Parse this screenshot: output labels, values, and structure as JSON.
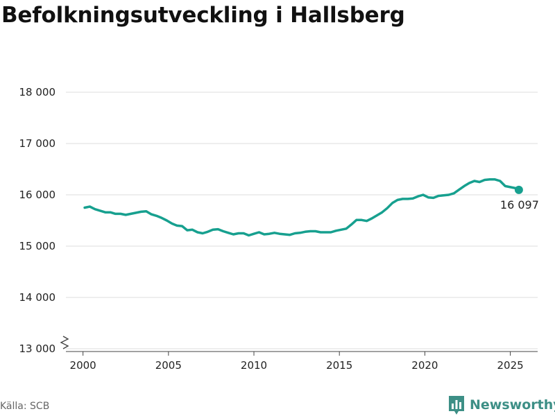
{
  "header": {
    "title": "Befolkningsutveckling i Hallsberg"
  },
  "footer": {
    "source": "Källa: SCB",
    "brand": "Newsworthy"
  },
  "colors": {
    "line": "#17a08f",
    "grid": "#dddddd",
    "axis": "#444444",
    "brand": "#3d8f86"
  },
  "icons": {
    "brand_logo": "bar-chart-speech-bubble-icon",
    "axis_break": "zigzag-axis-break-icon"
  },
  "chart_data": {
    "type": "line",
    "title": "Befolkningsutveckling i Hallsberg",
    "xlabel": "",
    "ylabel": "",
    "xlim": [
      1999.0,
      2026.6
    ],
    "ylim": [
      13000,
      18000
    ],
    "y_axis_break": true,
    "grid": "horizontal",
    "x_ticks": [
      2000,
      2005,
      2010,
      2015,
      2020,
      2025
    ],
    "x_tick_labels": [
      "2000",
      "2005",
      "2010",
      "2015",
      "2020",
      "2025"
    ],
    "y_ticks": [
      13000,
      14000,
      15000,
      16000,
      17000,
      18000
    ],
    "y_tick_labels": [
      "13 000",
      "14 000",
      "15 000",
      "16 000",
      "17 000",
      "18 000"
    ],
    "series": [
      {
        "x": [
          2000.1,
          2000.4,
          2000.7,
          2001.0,
          2001.3,
          2001.6,
          2001.9,
          2002.2,
          2002.5,
          2002.8,
          2003.1,
          2003.4,
          2003.7,
          2004.0,
          2004.3,
          2004.6,
          2004.9,
          2005.2,
          2005.5,
          2005.8,
          2006.1,
          2006.4,
          2006.7,
          2007.0,
          2007.3,
          2007.6,
          2007.9,
          2008.2,
          2008.5,
          2008.8,
          2009.1,
          2009.4,
          2009.7,
          2010.0,
          2010.3,
          2010.6,
          2010.9,
          2011.2,
          2011.5,
          2011.8,
          2012.1,
          2012.4,
          2012.7,
          2013.0,
          2013.3,
          2013.6,
          2013.9,
          2014.2,
          2014.5,
          2014.8,
          2015.1,
          2015.4,
          2015.7,
          2016.0,
          2016.3,
          2016.6,
          2016.9,
          2017.2,
          2017.5,
          2017.8,
          2018.1,
          2018.4,
          2018.7,
          2019.0,
          2019.3,
          2019.6,
          2019.9,
          2020.2,
          2020.5,
          2020.8,
          2021.1,
          2021.4,
          2021.7,
          2022.0,
          2022.3,
          2022.6,
          2022.9,
          2023.2,
          2023.5,
          2023.8,
          2024.1,
          2024.4,
          2024.7,
          2025.0,
          2025.3,
          2025.5
        ],
        "values": [
          15750,
          15770,
          15720,
          15690,
          15660,
          15660,
          15630,
          15630,
          15610,
          15630,
          15650,
          15670,
          15680,
          15620,
          15590,
          15550,
          15500,
          15440,
          15400,
          15390,
          15310,
          15320,
          15270,
          15250,
          15280,
          15320,
          15330,
          15290,
          15260,
          15230,
          15250,
          15250,
          15210,
          15240,
          15270,
          15230,
          15240,
          15260,
          15240,
          15230,
          15220,
          15250,
          15260,
          15280,
          15290,
          15290,
          15270,
          15270,
          15270,
          15300,
          15320,
          15340,
          15420,
          15510,
          15510,
          15490,
          15540,
          15600,
          15660,
          15740,
          15840,
          15900,
          15920,
          15920,
          15930,
          15970,
          16000,
          15950,
          15940,
          15980,
          15990,
          16000,
          16030,
          16100,
          16170,
          16230,
          16270,
          16250,
          16290,
          16300,
          16300,
          16270,
          16170,
          16150,
          16130,
          16097
        ]
      }
    ],
    "annotations": [
      {
        "x": 2025.5,
        "y": 16097,
        "label": "16 097"
      }
    ]
  }
}
